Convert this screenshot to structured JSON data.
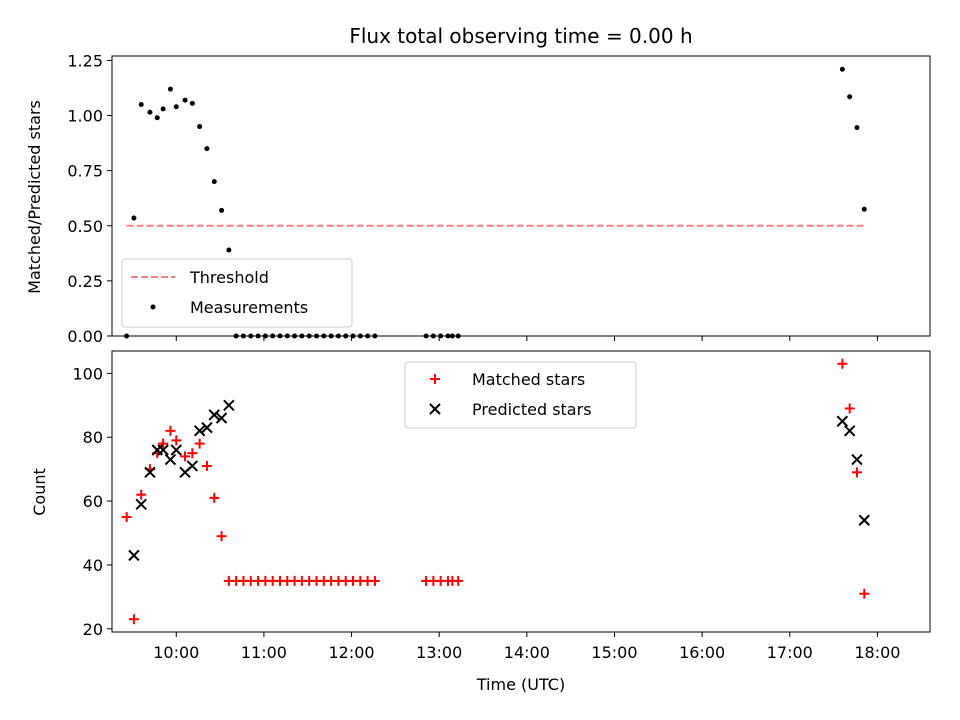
{
  "chart_data": [
    {
      "type": "scatter",
      "title": "Flux total observing time = 0.00 h",
      "xlabel": "",
      "ylabel": "Matched/Predicted stars",
      "xlim": [
        "09:16",
        "18:36"
      ],
      "ylim": [
        0,
        1.27
      ],
      "yticks": [
        "0.00",
        "0.25",
        "0.50",
        "0.75",
        "1.00",
        "1.25"
      ],
      "legend_position": "lower-left",
      "series": [
        {
          "name": "Threshold",
          "style": "dashed-line",
          "color": "#ff7f7f",
          "points": [
            [
              "09:26",
              0.5
            ],
            [
              "17:52",
              0.5
            ]
          ]
        },
        {
          "name": "Measurements",
          "style": "dot",
          "color": "#000000",
          "points": [
            [
              "09:26",
              0.0
            ],
            [
              "09:31",
              0.535
            ],
            [
              "09:36",
              1.05
            ],
            [
              "09:42",
              1.015
            ],
            [
              "09:47",
              0.99
            ],
            [
              "09:51",
              1.03
            ],
            [
              "09:56",
              1.12
            ],
            [
              "10:00",
              1.04
            ],
            [
              "10:06",
              1.07
            ],
            [
              "10:11",
              1.055
            ],
            [
              "10:16",
              0.95
            ],
            [
              "10:21",
              0.85
            ],
            [
              "10:26",
              0.7
            ],
            [
              "10:31",
              0.57
            ],
            [
              "10:36",
              0.39
            ],
            [
              "10:41",
              0.0
            ],
            [
              "10:46",
              0.0
            ],
            [
              "10:51",
              0.0
            ],
            [
              "10:56",
              0.0
            ],
            [
              "11:01",
              0.0
            ],
            [
              "11:06",
              0.0
            ],
            [
              "11:11",
              0.0
            ],
            [
              "11:16",
              0.0
            ],
            [
              "11:21",
              0.0
            ],
            [
              "11:26",
              0.0
            ],
            [
              "11:31",
              0.0
            ],
            [
              "11:36",
              0.0
            ],
            [
              "11:41",
              0.0
            ],
            [
              "11:46",
              0.0
            ],
            [
              "11:51",
              0.0
            ],
            [
              "11:56",
              0.0
            ],
            [
              "12:01",
              0.0
            ],
            [
              "12:06",
              0.0
            ],
            [
              "12:11",
              0.0
            ],
            [
              "12:16",
              0.0
            ],
            [
              "12:51",
              0.0
            ],
            [
              "12:56",
              0.0
            ],
            [
              "13:01",
              0.0
            ],
            [
              "13:06",
              0.0
            ],
            [
              "13:09",
              0.0
            ],
            [
              "13:13",
              0.0
            ],
            [
              "17:36",
              1.21
            ],
            [
              "17:41",
              1.085
            ],
            [
              "17:46",
              0.945
            ],
            [
              "17:51",
              0.575
            ]
          ]
        }
      ]
    },
    {
      "type": "scatter",
      "title": "",
      "xlabel": "Time (UTC)",
      "ylabel": "Count",
      "xlim": [
        "09:16",
        "18:36"
      ],
      "ylim": [
        19,
        107
      ],
      "xticks": [
        "10:00",
        "11:00",
        "12:00",
        "13:00",
        "14:00",
        "15:00",
        "16:00",
        "17:00",
        "18:00"
      ],
      "yticks": [
        "20",
        "40",
        "60",
        "80",
        "100"
      ],
      "legend_position": "upper-center",
      "series": [
        {
          "name": "Matched stars",
          "style": "plus",
          "color": "#ff0000",
          "points": [
            [
              "09:26",
              55
            ],
            [
              "09:31",
              23
            ],
            [
              "09:36",
              62
            ],
            [
              "09:42",
              70
            ],
            [
              "09:47",
              75
            ],
            [
              "09:51",
              78
            ],
            [
              "09:56",
              82
            ],
            [
              "10:00",
              79
            ],
            [
              "10:06",
              74
            ],
            [
              "10:11",
              75
            ],
            [
              "10:16",
              78
            ],
            [
              "10:21",
              71
            ],
            [
              "10:26",
              61
            ],
            [
              "10:31",
              49
            ],
            [
              "10:36",
              35
            ],
            [
              "10:41",
              35
            ],
            [
              "10:46",
              35
            ],
            [
              "10:51",
              35
            ],
            [
              "10:56",
              35
            ],
            [
              "11:01",
              35
            ],
            [
              "11:06",
              35
            ],
            [
              "11:11",
              35
            ],
            [
              "11:16",
              35
            ],
            [
              "11:21",
              35
            ],
            [
              "11:26",
              35
            ],
            [
              "11:31",
              35
            ],
            [
              "11:36",
              35
            ],
            [
              "11:41",
              35
            ],
            [
              "11:46",
              35
            ],
            [
              "11:51",
              35
            ],
            [
              "11:56",
              35
            ],
            [
              "12:01",
              35
            ],
            [
              "12:06",
              35
            ],
            [
              "12:11",
              35
            ],
            [
              "12:16",
              35
            ],
            [
              "12:51",
              35
            ],
            [
              "12:56",
              35
            ],
            [
              "13:01",
              35
            ],
            [
              "13:06",
              35
            ],
            [
              "13:09",
              35
            ],
            [
              "13:13",
              35
            ],
            [
              "17:36",
              103
            ],
            [
              "17:41",
              89
            ],
            [
              "17:46",
              69
            ],
            [
              "17:51",
              31
            ]
          ]
        },
        {
          "name": "Predicted stars",
          "style": "x",
          "color": "#000000",
          "points": [
            [
              "09:31",
              43
            ],
            [
              "09:36",
              59
            ],
            [
              "09:42",
              69
            ],
            [
              "09:47",
              76
            ],
            [
              "09:51",
              76
            ],
            [
              "09:56",
              73
            ],
            [
              "10:00",
              76
            ],
            [
              "10:06",
              69
            ],
            [
              "10:11",
              71
            ],
            [
              "10:16",
              82
            ],
            [
              "10:21",
              83
            ],
            [
              "10:26",
              87
            ],
            [
              "10:31",
              86
            ],
            [
              "10:36",
              90
            ],
            [
              "17:36",
              85
            ],
            [
              "17:41",
              82
            ],
            [
              "17:46",
              73
            ],
            [
              "17:51",
              54
            ]
          ]
        }
      ]
    }
  ]
}
